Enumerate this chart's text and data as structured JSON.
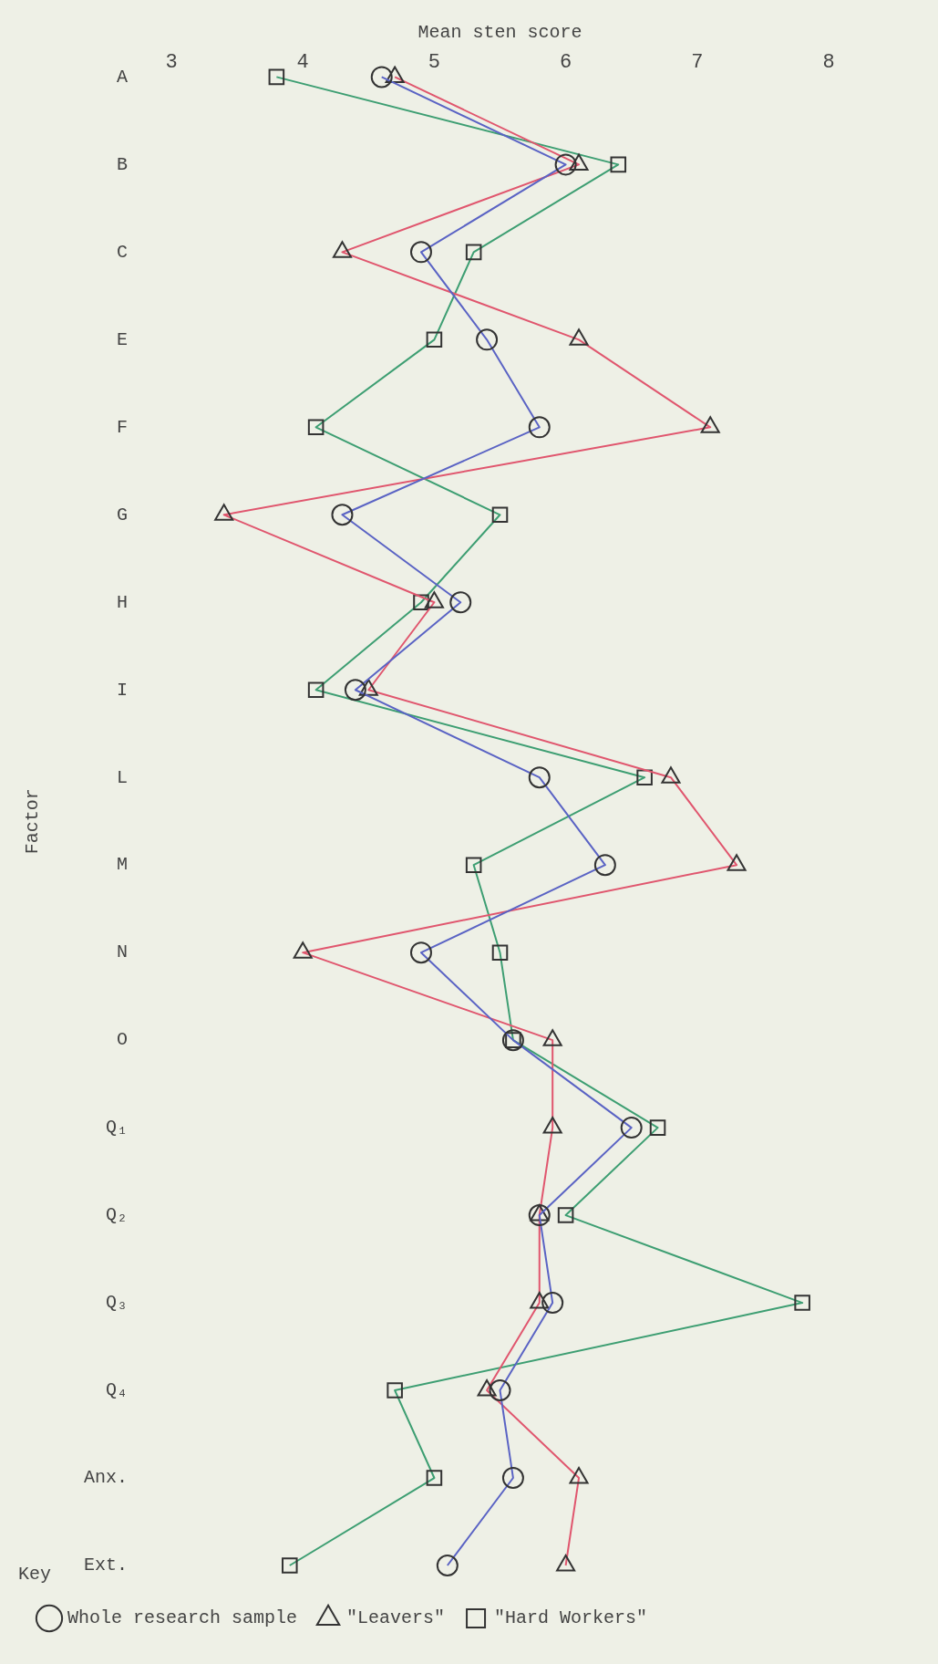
{
  "chart_data": {
    "type": "line",
    "orientation": "horizontal",
    "xlabel": "Mean sten score",
    "ylabel": "Factor",
    "legend_title": "Key",
    "legend": "bottom",
    "grid": false,
    "categories": [
      "A",
      "B",
      "C",
      "E",
      "F",
      "G",
      "H",
      "I",
      "L",
      "M",
      "N",
      "O",
      "Q₁",
      "Q₂",
      "Q₃",
      "Q₄",
      "Anx.",
      "Ext."
    ],
    "xlim": [
      3,
      8
    ],
    "xticks": [
      3,
      4,
      5,
      6,
      7,
      8
    ],
    "series": [
      {
        "name": "Whole research sample",
        "color": "#5a63c4",
        "marker": "circle",
        "values": [
          4.6,
          6.0,
          4.9,
          5.4,
          5.8,
          4.3,
          5.2,
          4.4,
          5.8,
          6.3,
          4.9,
          5.6,
          6.5,
          5.8,
          5.9,
          5.5,
          5.6,
          5.1
        ]
      },
      {
        "name": "\"Leavers\"",
        "color": "#e0566e",
        "marker": "triangle",
        "values": [
          4.7,
          6.1,
          4.3,
          6.1,
          7.1,
          3.4,
          5.0,
          4.5,
          6.8,
          7.3,
          4.0,
          5.9,
          5.9,
          5.8,
          5.8,
          5.4,
          6.1,
          6.0
        ]
      },
      {
        "name": "\"Hard Workers\"",
        "color": "#3d9e72",
        "marker": "square",
        "values": [
          3.8,
          6.4,
          5.3,
          5.0,
          4.1,
          5.5,
          4.9,
          4.1,
          6.6,
          5.3,
          5.5,
          5.6,
          6.7,
          6.0,
          7.8,
          4.7,
          5.0,
          3.9
        ]
      }
    ]
  }
}
